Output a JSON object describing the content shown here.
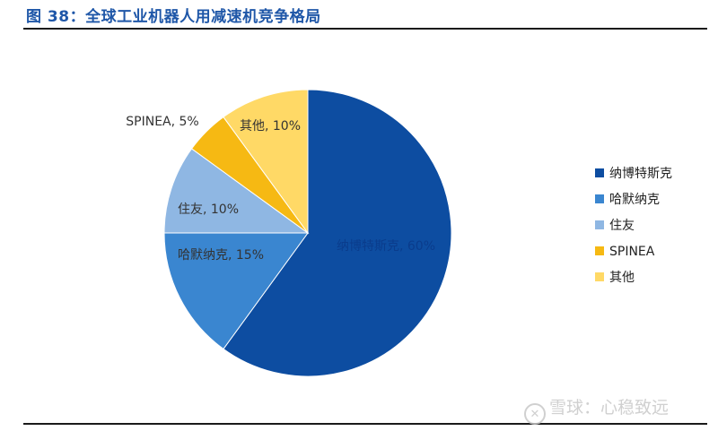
{
  "figure": {
    "title": "图 38：全球工业机器人用减速机竞争格局"
  },
  "watermark": {
    "text": "雪球：心稳致远"
  },
  "chart_data": {
    "type": "pie",
    "title": "",
    "slices": [
      {
        "label": "纳博特斯克",
        "value": 60,
        "color": "#0d4da1",
        "display": "纳博特斯克, 60%"
      },
      {
        "label": "哈默纳克",
        "value": 15,
        "color": "#3a86d0",
        "display": "哈默纳克, 15%"
      },
      {
        "label": "住友",
        "value": 10,
        "color": "#8fb7e3",
        "display": "住友, 10%"
      },
      {
        "label": "SPINEA",
        "value": 5,
        "color": "#f6b913",
        "display": "SPINEA, 5%"
      },
      {
        "label": "其他",
        "value": 10,
        "color": "#ffd966",
        "display": "其他, 10%"
      }
    ],
    "legend": {
      "position": "right",
      "entries": [
        "纳博特斯克",
        "哈默纳克",
        "住友",
        "SPINEA",
        "其他"
      ]
    }
  }
}
